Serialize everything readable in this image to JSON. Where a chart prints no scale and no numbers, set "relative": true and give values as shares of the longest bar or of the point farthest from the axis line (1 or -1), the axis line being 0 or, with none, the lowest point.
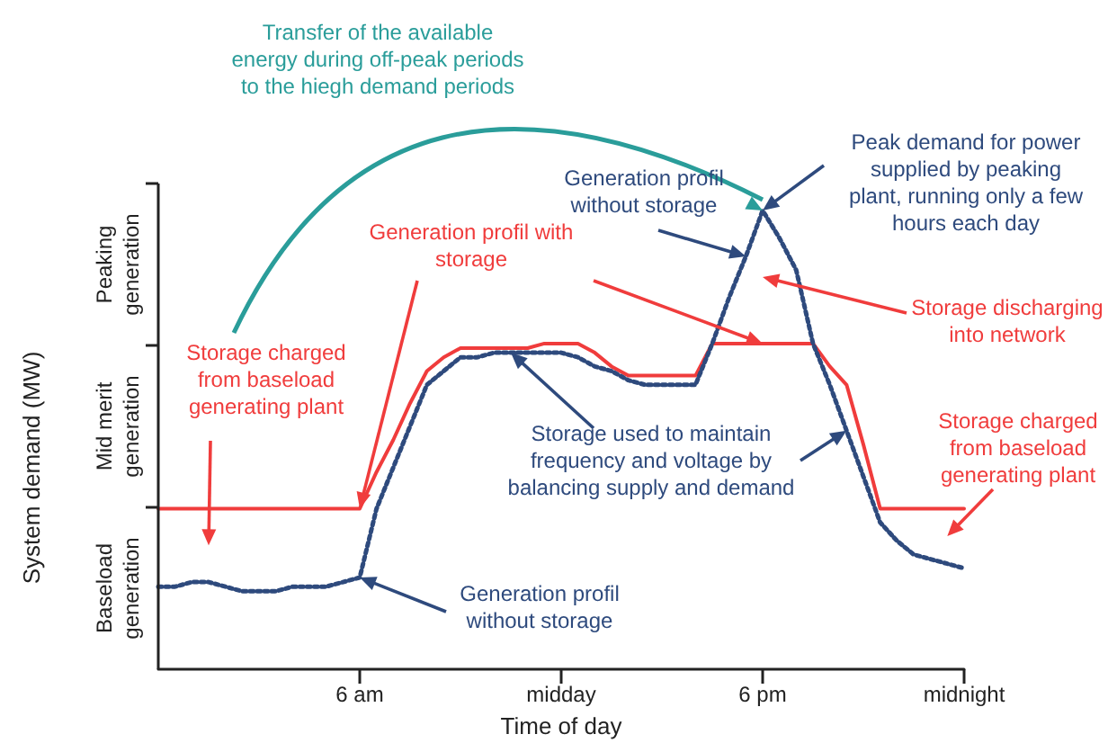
{
  "chart_data": {
    "type": "line",
    "relative": true,
    "xlabel": "Time of day",
    "ylabel": "System demand (MW)",
    "categories": [
      null,
      null,
      null,
      null,
      null,
      null,
      null,
      null,
      null,
      null,
      null,
      null,
      "6 am",
      null,
      null,
      null,
      null,
      null,
      null,
      null,
      null,
      null,
      null,
      null,
      "midday",
      null,
      null,
      null,
      null,
      null,
      null,
      null,
      null,
      null,
      null,
      null,
      "6 pm",
      null,
      null,
      null,
      null,
      null,
      null,
      null,
      null,
      null,
      null,
      null,
      "midnight"
    ],
    "series": [
      {
        "color": "#f03c3c",
        "line_style": "solid",
        "values": [
          0.35,
          0.35,
          0.35,
          0.35,
          0.35,
          0.35,
          0.35,
          0.35,
          0.35,
          0.35,
          0.35,
          0.35,
          0.35,
          0.43,
          0.5,
          0.58,
          0.65,
          0.68,
          0.7,
          0.7,
          0.7,
          0.7,
          0.7,
          0.71,
          0.71,
          0.71,
          0.69,
          0.66,
          0.64,
          0.64,
          0.64,
          0.64,
          0.64,
          0.71,
          0.71,
          0.71,
          0.71,
          0.71,
          0.71,
          0.71,
          0.66,
          0.62,
          0.49,
          0.35,
          0.35,
          0.35,
          0.35,
          0.35,
          0.35
        ]
      },
      {
        "color": "#2e4a7d",
        "line_style": "dotted",
        "values": [
          0.18,
          0.18,
          0.19,
          0.19,
          0.18,
          0.17,
          0.17,
          0.17,
          0.18,
          0.18,
          0.18,
          0.19,
          0.2,
          0.35,
          0.44,
          0.53,
          0.62,
          0.65,
          0.68,
          0.68,
          0.69,
          0.69,
          0.69,
          0.69,
          0.69,
          0.68,
          0.66,
          0.65,
          0.63,
          0.62,
          0.62,
          0.62,
          0.62,
          0.71,
          0.81,
          0.9,
          1,
          0.94,
          0.87,
          0.71,
          0.62,
          0.52,
          0.42,
          0.32,
          0.28,
          0.25,
          0.24,
          0.23,
          0.22
        ]
      }
    ],
    "annotations": [
      "Transfer of the available energy during off-peak periods to the hiegh demand periods",
      "Generation profil without storage",
      "Peak demand for power supplied by peaking plant, running only a few hours each day",
      "Generation profil with storage",
      "Storage charged from baseload generating plant",
      "Storage discharging into network",
      "Storage used to maintain frequency and voltage by balancing supply and demand",
      "Storage charged from baseload generating plant",
      "Generation profil without storage",
      "Peaking generation",
      "Mid merit generation",
      "Baseload generation"
    ],
    "grid": false,
    "marker": "none"
  }
}
